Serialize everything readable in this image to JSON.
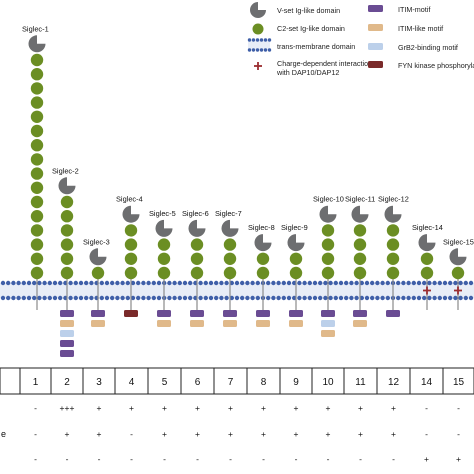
{
  "colors": {
    "vset": "#6d6e70",
    "c2set": "#6b8e23",
    "membrane": "#3f5fa8",
    "membrane_fill": "#e8edf7",
    "charge": "#9b2d30",
    "itim": "#6a4c93",
    "itim_like": "#e0b98a",
    "grb2": "#bcd0ea",
    "fyn": "#7a2a2a"
  },
  "legend": {
    "vset": "V-set Ig-like domain",
    "c2set": "C2-set Ig-like domain",
    "tm": "trans-membrane domain",
    "charge_line1": "Charge-dependent interaction",
    "charge_line2": "with DAP10/DAP12",
    "itim": "ITIM-motif",
    "itim_like": "ITIM-like motif",
    "grb2": "GrB2-binding motif",
    "fyn": "FYN kinase phosphorylation"
  },
  "siglecs": [
    {
      "label": "Siglec-1",
      "c2": 16,
      "motifs": [],
      "charge": false
    },
    {
      "label": "Siglec-2",
      "c2": 6,
      "motifs": [
        "itim",
        "itim_like",
        "grb2",
        "itim",
        "itim"
      ],
      "charge": false
    },
    {
      "label": "Siglec-3",
      "c2": 1,
      "motifs": [
        "itim",
        "itim_like"
      ],
      "charge": false
    },
    {
      "label": "Siglec-4",
      "c2": 4,
      "motifs": [
        "fyn"
      ],
      "charge": false
    },
    {
      "label": "Siglec-5",
      "c2": 3,
      "motifs": [
        "itim",
        "itim_like"
      ],
      "charge": false
    },
    {
      "label": "Siglec-6",
      "c2": 3,
      "motifs": [
        "itim",
        "itim_like"
      ],
      "charge": false
    },
    {
      "label": "Siglec-7",
      "c2": 3,
      "motifs": [
        "itim",
        "itim_like"
      ],
      "charge": false
    },
    {
      "label": "Siglec-8",
      "c2": 2,
      "motifs": [
        "itim",
        "itim_like"
      ],
      "charge": false
    },
    {
      "label": "Siglec-9",
      "c2": 2,
      "motifs": [
        "itim",
        "itim_like"
      ],
      "charge": false
    },
    {
      "label": "Siglec-10",
      "c2": 4,
      "motifs": [
        "itim",
        "grb2",
        "itim_like"
      ],
      "charge": false
    },
    {
      "label": "Siglec-11",
      "c2": 4,
      "motifs": [
        "itim",
        "itim_like"
      ],
      "charge": false
    },
    {
      "label": "Siglec-12",
      "c2": 4,
      "motifs": [
        "itim"
      ],
      "charge": false
    },
    {
      "label": "Siglec-14",
      "c2": 2,
      "motifs": [],
      "charge": true
    },
    {
      "label": "Siglec-15",
      "c2": 1,
      "motifs": [],
      "charge": true
    }
  ],
  "table": {
    "numbers": [
      "1",
      "2",
      "3",
      "4",
      "5",
      "6",
      "7",
      "8",
      "9",
      "10",
      "11",
      "12",
      "14",
      "15"
    ],
    "rows": [
      {
        "label": "",
        "cells": [
          "-",
          "+++",
          "+",
          "+",
          "+",
          "+",
          "+",
          "+",
          "+",
          "+",
          "+",
          "+",
          "-",
          "-"
        ]
      },
      {
        "label": "e",
        "cells": [
          "-",
          "+",
          "+",
          "-",
          "+",
          "+",
          "+",
          "+",
          "+",
          "+",
          "+",
          "+",
          "-",
          "-"
        ]
      },
      {
        "label": "",
        "cells": [
          "-",
          "-",
          "-",
          "-",
          "-",
          "-",
          "-",
          "-",
          "-",
          "-",
          "-",
          "-",
          "+",
          "+"
        ]
      }
    ]
  }
}
